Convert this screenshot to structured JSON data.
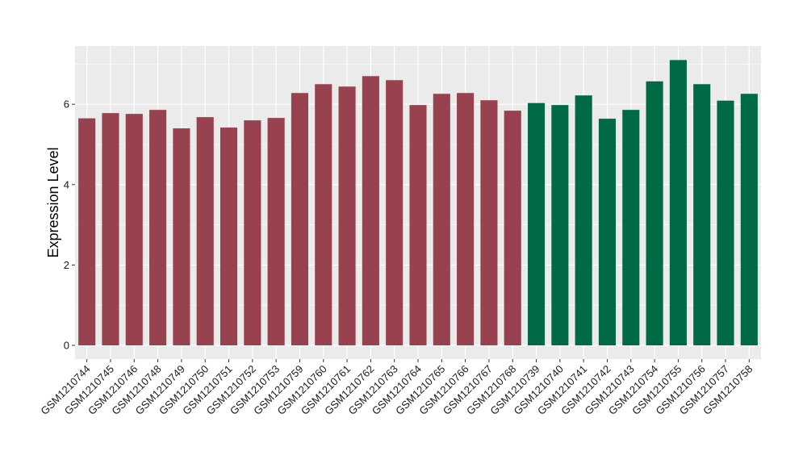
{
  "chart_data": {
    "type": "bar",
    "title": "",
    "xlabel": "",
    "ylabel": "Expression Level",
    "ylim": [
      0,
      7.3
    ],
    "yticks": [
      0,
      2,
      4,
      6
    ],
    "grid": true,
    "categories": [
      "GSM1210744",
      "GSM1210745",
      "GSM1210746",
      "GSM1210748",
      "GSM1210749",
      "GSM1210750",
      "GSM1210751",
      "GSM1210752",
      "GSM1210753",
      "GSM1210759",
      "GSM1210760",
      "GSM1210761",
      "GSM1210762",
      "GSM1210763",
      "GSM1210764",
      "GSM1210765",
      "GSM1210766",
      "GSM1210767",
      "GSM1210768",
      "GSM1210739",
      "GSM1210740",
      "GSM1210741",
      "GSM1210742",
      "GSM1210743",
      "GSM1210754",
      "GSM1210755",
      "GSM1210756",
      "GSM1210757",
      "GSM1210758"
    ],
    "values": [
      5.65,
      5.78,
      5.76,
      5.86,
      5.4,
      5.68,
      5.42,
      5.6,
      5.66,
      6.28,
      6.5,
      6.44,
      6.7,
      6.6,
      5.98,
      6.26,
      6.28,
      6.1,
      5.84,
      6.03,
      5.98,
      6.22,
      5.64,
      5.86,
      6.57,
      7.1,
      6.5,
      6.09,
      6.26
    ],
    "bar_colors": [
      "#99424f",
      "#99424f",
      "#99424f",
      "#99424f",
      "#99424f",
      "#99424f",
      "#99424f",
      "#99424f",
      "#99424f",
      "#99424f",
      "#99424f",
      "#99424f",
      "#99424f",
      "#99424f",
      "#99424f",
      "#99424f",
      "#99424f",
      "#99424f",
      "#99424f",
      "#006a45",
      "#006a45",
      "#006a45",
      "#006a45",
      "#006a45",
      "#006a45",
      "#006a45",
      "#006a45",
      "#006a45",
      "#006a45"
    ],
    "panel_background": "#ebebeb",
    "gridline_color": "#ffffff"
  }
}
